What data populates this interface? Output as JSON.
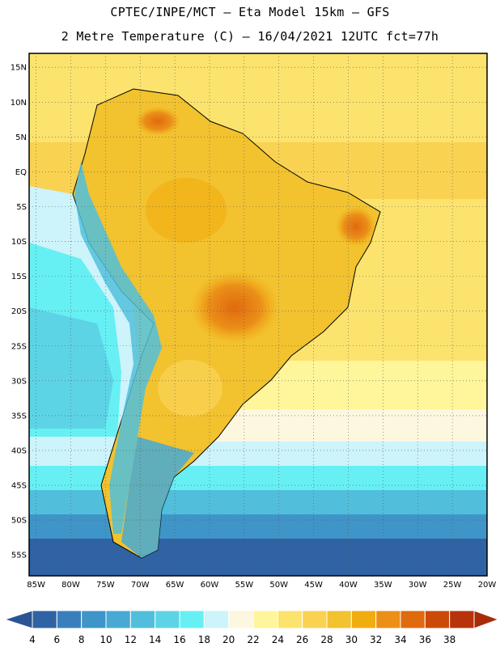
{
  "header": {
    "title_line1": "CPTEC/INPE/MCT –  Eta Model 15km – GFS",
    "title_line2": "2 Metre Temperature (C) – 16/04/2021 12UTC fct=77h"
  },
  "map": {
    "lat_labels": [
      "15N",
      "10N",
      "5N",
      "EQ",
      "5S",
      "10S",
      "15S",
      "20S",
      "25S",
      "30S",
      "35S",
      "40S",
      "45S",
      "50S",
      "55S"
    ],
    "lat_values": [
      15,
      10,
      5,
      0,
      -5,
      -10,
      -15,
      -20,
      -25,
      -30,
      -35,
      -40,
      -45,
      -50,
      -55
    ],
    "lon_labels": [
      "85W",
      "80W",
      "75W",
      "70W",
      "65W",
      "60W",
      "55W",
      "50W",
      "45W",
      "40W",
      "35W",
      "30W",
      "25W",
      "20W"
    ],
    "lon_values": [
      -85,
      -80,
      -75,
      -70,
      -65,
      -60,
      -55,
      -50,
      -45,
      -40,
      -35,
      -30,
      -25,
      -20
    ],
    "lon_range": [
      -86,
      -20
    ],
    "lat_range": [
      -58,
      17
    ],
    "grid": "dotted"
  },
  "colorbar": {
    "labels": [
      "4",
      "6",
      "8",
      "10",
      "12",
      "14",
      "16",
      "18",
      "20",
      "22",
      "24",
      "26",
      "28",
      "30",
      "32",
      "34",
      "36",
      "38"
    ],
    "colors": [
      "#2f63a4",
      "#3a7fbc",
      "#3f95c8",
      "#47a9d4",
      "#51bfdc",
      "#5dd4e6",
      "#66f0f4",
      "#cdf3fb",
      "#fdf7e0",
      "#fff59a",
      "#fce36e",
      "#f9d252",
      "#f2c22f",
      "#f1ac10",
      "#eb8f19",
      "#e06a0e",
      "#cc4a07",
      "#b8320b"
    ]
  }
}
